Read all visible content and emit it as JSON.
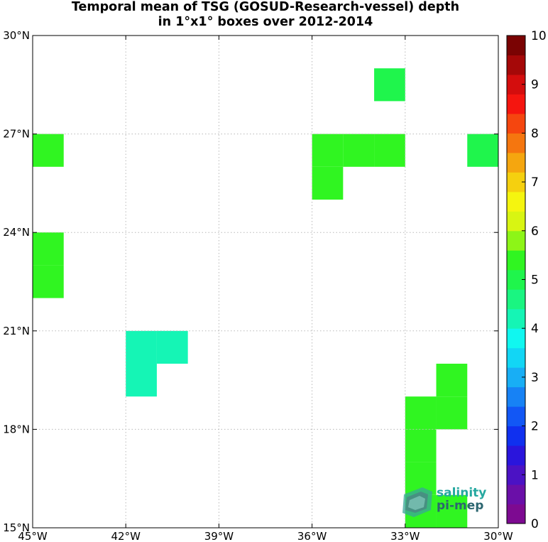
{
  "title_line1": "Temporal mean of TSG (GOSUD-Research-vessel) depth",
  "title_line2": "in 1°x1° boxes over 2012-2014",
  "logo": {
    "line1": "salinity",
    "line2": "pi-mep"
  },
  "chart_data": {
    "type": "heatmap",
    "x_range": [
      -45,
      -30
    ],
    "y_range": [
      15,
      30
    ],
    "x_ticks": [
      {
        "value": -45,
        "label": "45°W"
      },
      {
        "value": -42,
        "label": "42°W"
      },
      {
        "value": -39,
        "label": "39°W"
      },
      {
        "value": -36,
        "label": "36°W"
      },
      {
        "value": -33,
        "label": "33°W"
      },
      {
        "value": -30,
        "label": "30°W"
      }
    ],
    "y_ticks": [
      {
        "value": 15,
        "label": "15°N"
      },
      {
        "value": 18,
        "label": "18°N"
      },
      {
        "value": 21,
        "label": "21°N"
      },
      {
        "value": 24,
        "label": "24°N"
      },
      {
        "value": 27,
        "label": "27°N"
      },
      {
        "value": 30,
        "label": "30°N"
      }
    ],
    "grid": true,
    "colorbar": {
      "range": [
        0,
        10
      ],
      "ticks": [
        "0",
        "1",
        "2",
        "3",
        "4",
        "5",
        "6",
        "7",
        "8",
        "9",
        "10"
      ],
      "colors": [
        "#7d0a91",
        "#6a0fa8",
        "#4b12c4",
        "#2a15dc",
        "#1030ef",
        "#1257f5",
        "#1782f5",
        "#18aef5",
        "#12d6f5",
        "#10f7f0",
        "#15f5b5",
        "#1af581",
        "#1ff54c",
        "#30f521",
        "#8df517",
        "#d8f512",
        "#f5f50f",
        "#f5d00f",
        "#f5a60f",
        "#f5760f",
        "#f5460f",
        "#f5150f",
        "#d40d0d",
        "#a50808",
        "#7a0303"
      ]
    },
    "cells": [
      {
        "lon": -34,
        "lat": 28,
        "value": 5.0
      },
      {
        "lon": -45,
        "lat": 26,
        "value": 5.3
      },
      {
        "lon": -36,
        "lat": 26,
        "value": 5.3
      },
      {
        "lon": -35,
        "lat": 26,
        "value": 5.3
      },
      {
        "lon": -34,
        "lat": 26,
        "value": 5.3
      },
      {
        "lon": -36,
        "lat": 25,
        "value": 5.3
      },
      {
        "lon": -31,
        "lat": 26,
        "value": 5.1
      },
      {
        "lon": -45,
        "lat": 23,
        "value": 5.3
      },
      {
        "lon": -45,
        "lat": 22,
        "value": 5.3
      },
      {
        "lon": -42,
        "lat": 20,
        "value": 4.2
      },
      {
        "lon": -41,
        "lat": 20,
        "value": 4.2
      },
      {
        "lon": -42,
        "lat": 19,
        "value": 4.2
      },
      {
        "lon": -32,
        "lat": 19,
        "value": 5.3
      },
      {
        "lon": -32,
        "lat": 18,
        "value": 5.3
      },
      {
        "lon": -33,
        "lat": 18,
        "value": 5.3
      },
      {
        "lon": -33,
        "lat": 17,
        "value": 5.3
      },
      {
        "lon": -33,
        "lat": 16,
        "value": 5.3
      },
      {
        "lon": -33,
        "lat": 15,
        "value": 5.3
      },
      {
        "lon": -32,
        "lat": 15,
        "value": 5.3
      }
    ]
  }
}
